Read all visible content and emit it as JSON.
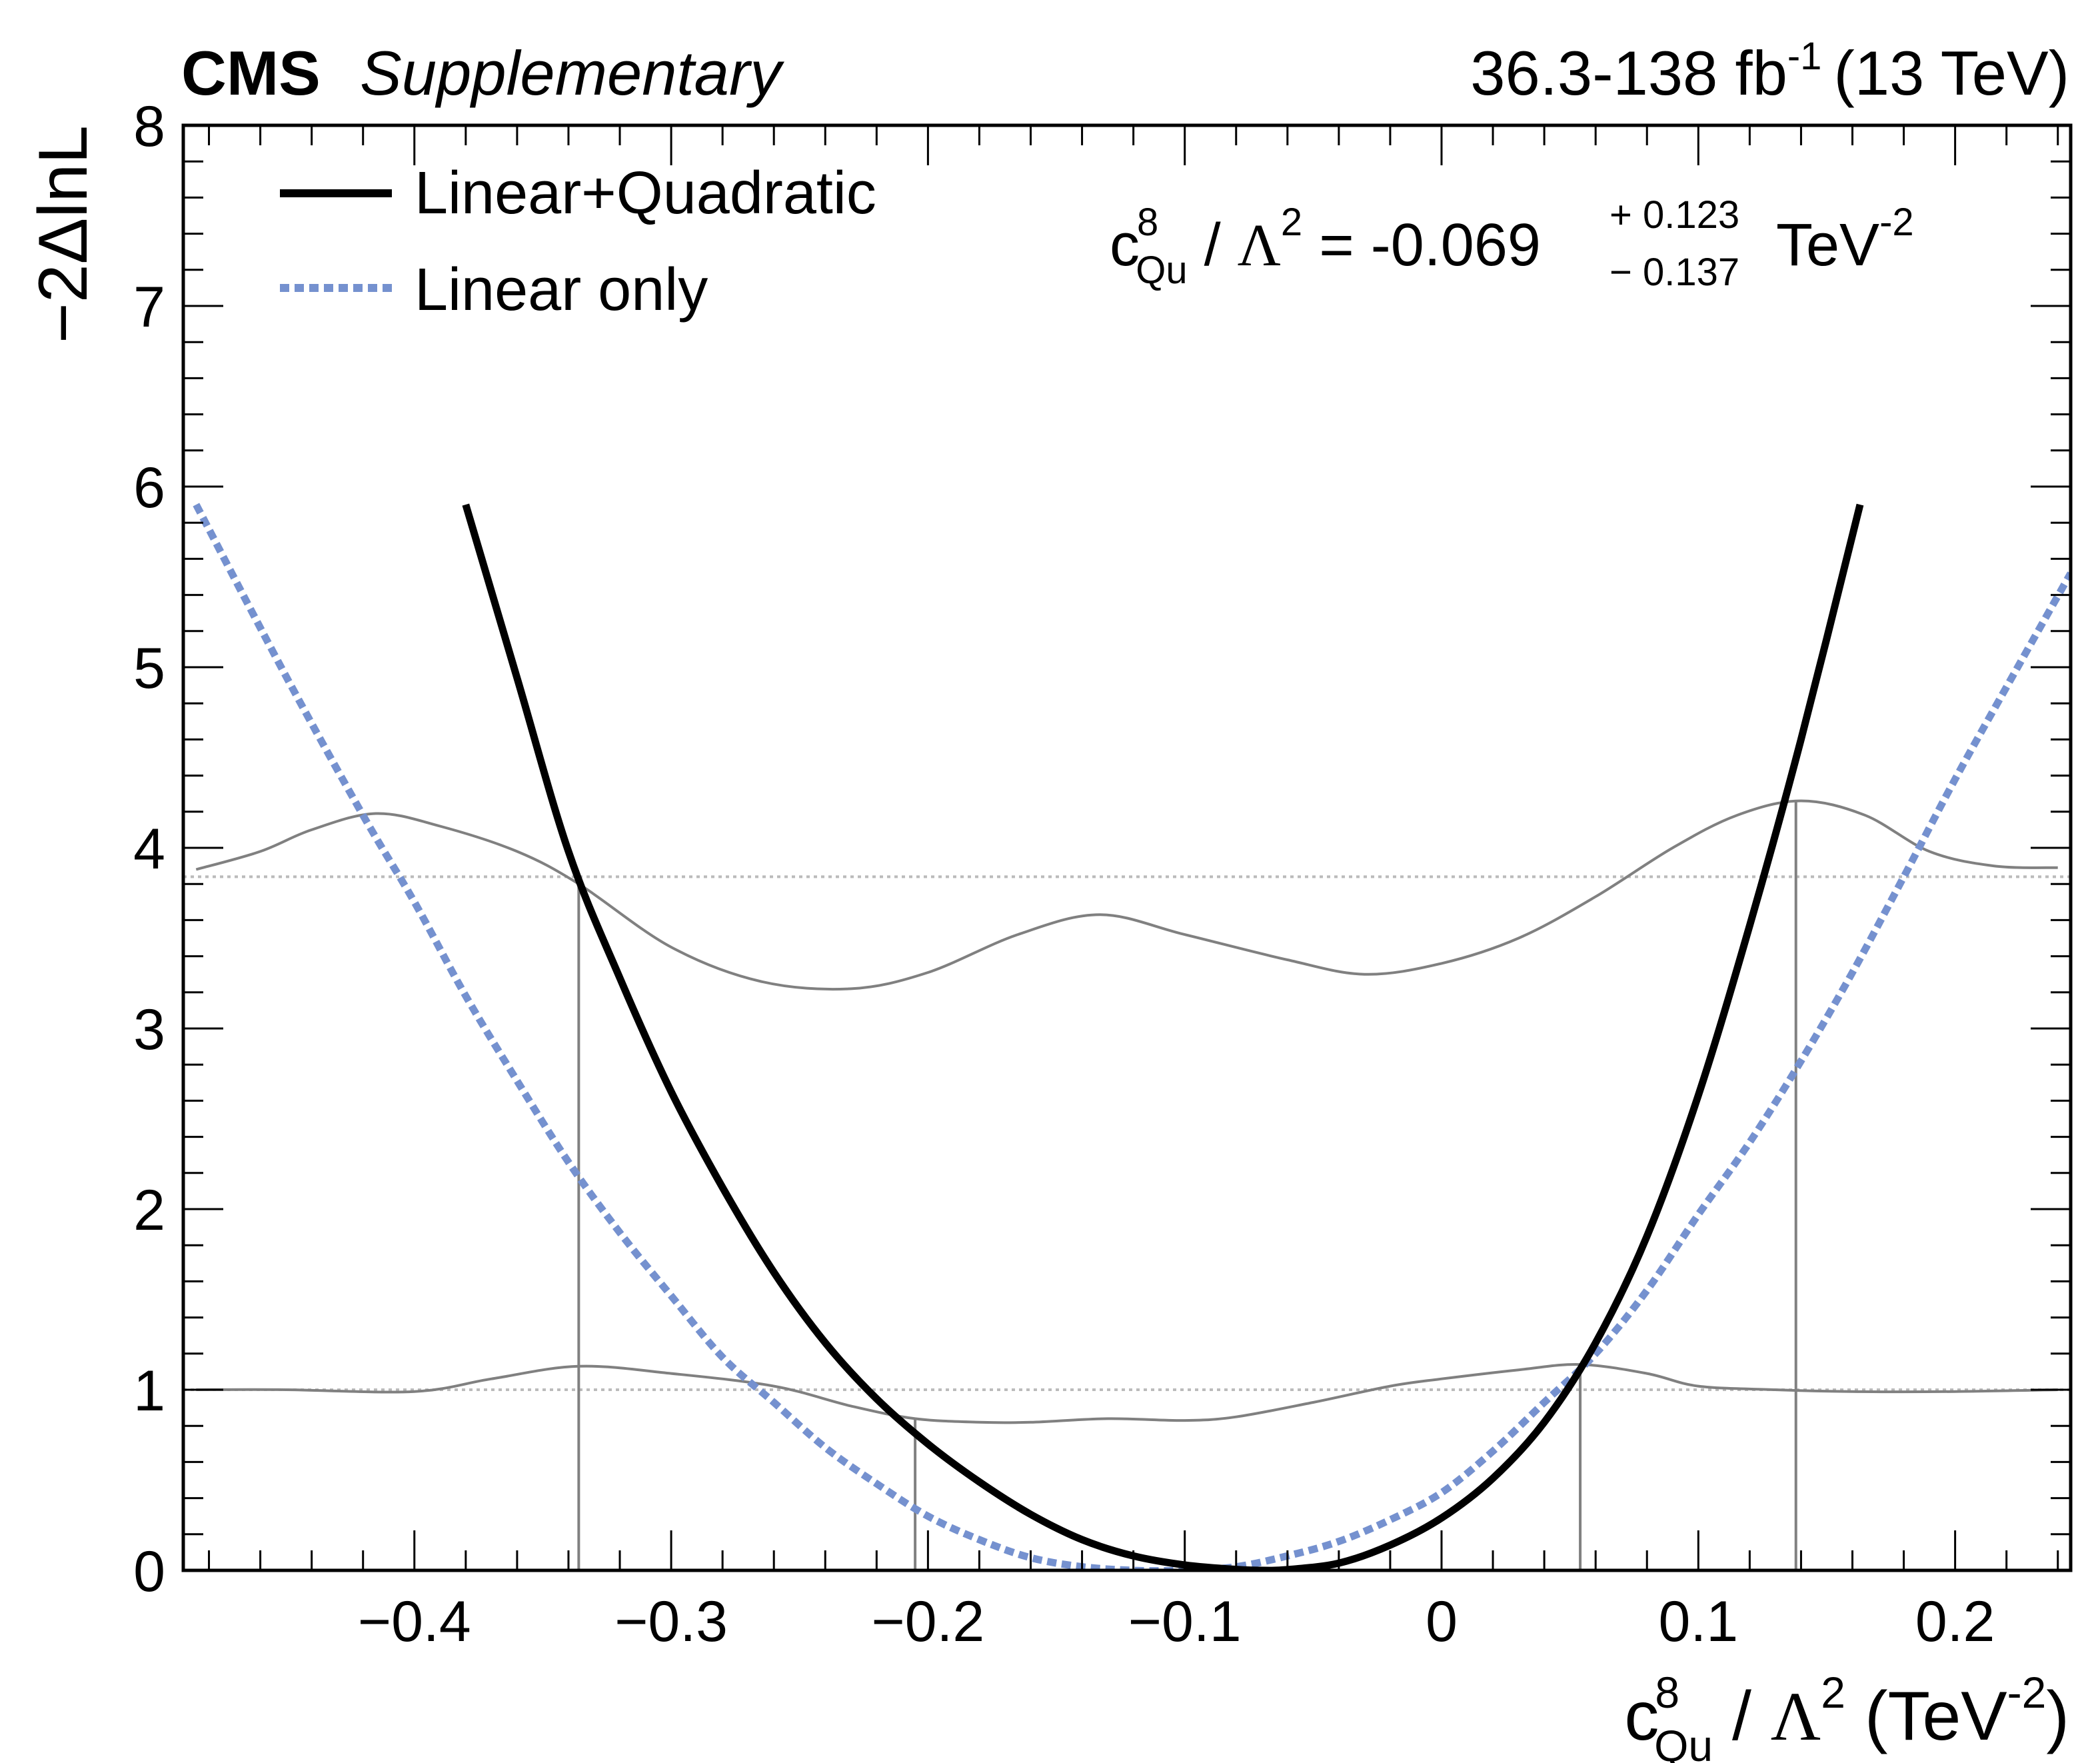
{
  "header": {
    "experiment": "CMS",
    "status": "Supplementary",
    "lumi_text": "36.3-138 fb",
    "lumi_exp": "-1",
    "energy": "(13 TeV)"
  },
  "result": {
    "coef": "c",
    "coef_sup": "8",
    "coef_sub": "Qu",
    "slash": " / ",
    "lambda": "Λ",
    "lambda_sup": "2",
    "equals_value": " = -0.069",
    "err_up": "+ 0.123",
    "err_down": "− 0.137",
    "unit": "TeV",
    "unit_sup": "-2"
  },
  "xaxis": {
    "coef": "c",
    "coef_sup": "8",
    "coef_sub": "Qu",
    "slash": " / ",
    "lambda": "Λ",
    "lambda_sup": "2",
    "unit_open": " (TeV",
    "unit_sup": "-2",
    "unit_close": ")"
  },
  "yaxis": {
    "label": "−2ΔlnL"
  },
  "legend": [
    {
      "label": "Linear+Quadratic",
      "color": "#000000",
      "style": "solid"
    },
    {
      "label": "Linear only",
      "color": "#7591cf",
      "style": "dotted"
    }
  ],
  "colors": {
    "linquad": "#000000",
    "linear": "#7591cf",
    "band": "#808080",
    "threshold": "#bbbbbb"
  },
  "chart_data": {
    "type": "line",
    "xlim": [
      -0.49,
      0.245
    ],
    "ylim": [
      0,
      8
    ],
    "x_ticks": [
      -0.4,
      -0.3,
      -0.2,
      -0.1,
      0,
      0.1,
      0.2
    ],
    "x_tick_labels": [
      "−0.4",
      "−0.3",
      "−0.2",
      "−0.1",
      "0",
      "0.1",
      "0.2"
    ],
    "y_ticks": [
      0,
      1,
      2,
      3,
      4,
      5,
      6,
      7,
      8
    ],
    "y_tick_labels": [
      "0",
      "1",
      "2",
      "3",
      "4",
      "5",
      "6",
      "7",
      "8"
    ],
    "series": [
      {
        "name": "Linear+Quadratic",
        "x": [
          -0.38,
          -0.36,
          -0.34,
          -0.32,
          -0.3,
          -0.28,
          -0.26,
          -0.24,
          -0.22,
          -0.2,
          -0.18,
          -0.16,
          -0.14,
          -0.12,
          -0.1,
          -0.08,
          -0.069,
          -0.06,
          -0.04,
          -0.02,
          0.0,
          0.02,
          0.04,
          0.06,
          0.08,
          0.1,
          0.12,
          0.14,
          0.163
        ],
        "y": [
          5.9,
          4.94,
          3.98,
          3.28,
          2.65,
          2.12,
          1.65,
          1.26,
          0.95,
          0.7,
          0.49,
          0.31,
          0.17,
          0.08,
          0.03,
          0.005,
          0.0,
          0.004,
          0.04,
          0.14,
          0.29,
          0.51,
          0.82,
          1.26,
          1.85,
          2.63,
          3.57,
          4.6,
          5.9
        ]
      },
      {
        "name": "Linear only",
        "x": [
          -0.485,
          -0.45,
          -0.42,
          -0.4,
          -0.38,
          -0.36,
          -0.34,
          -0.32,
          -0.3,
          -0.28,
          -0.26,
          -0.24,
          -0.22,
          -0.2,
          -0.18,
          -0.16,
          -0.14,
          -0.12,
          -0.1,
          -0.08,
          -0.06,
          -0.04,
          -0.02,
          0.0,
          0.02,
          0.04,
          0.06,
          0.08,
          0.1,
          0.12,
          0.14,
          0.16,
          0.18,
          0.2,
          0.22,
          0.245
        ],
        "y": [
          5.9,
          4.95,
          4.18,
          3.7,
          3.18,
          2.71,
          2.26,
          1.87,
          1.52,
          1.18,
          0.93,
          0.68,
          0.48,
          0.3,
          0.17,
          0.07,
          0.02,
          0.0,
          0.0,
          0.02,
          0.08,
          0.16,
          0.28,
          0.43,
          0.66,
          0.93,
          1.2,
          1.55,
          1.97,
          2.37,
          2.82,
          3.31,
          3.84,
          4.38,
          4.89,
          5.52
        ]
      },
      {
        "name": "",
        "x": [
          -0.485,
          -0.46,
          -0.44,
          -0.415,
          -0.39,
          -0.36,
          -0.336,
          -0.3,
          -0.265,
          -0.23,
          -0.2,
          -0.165,
          -0.133,
          -0.1,
          -0.06,
          -0.03,
          0.0,
          0.03,
          0.06,
          0.09,
          0.115,
          0.14,
          0.165,
          0.19,
          0.215,
          0.24
        ],
        "y": [
          3.88,
          3.98,
          4.1,
          4.19,
          4.12,
          3.98,
          3.8,
          3.45,
          3.26,
          3.22,
          3.31,
          3.52,
          3.63,
          3.52,
          3.38,
          3.3,
          3.36,
          3.5,
          3.73,
          4.0,
          4.18,
          4.26,
          4.18,
          3.98,
          3.9,
          3.89
        ]
      },
      {
        "name": "",
        "x": [
          -0.485,
          -0.45,
          -0.4,
          -0.37,
          -0.336,
          -0.3,
          -0.26,
          -0.23,
          -0.205,
          -0.18,
          -0.16,
          -0.13,
          -0.1,
          -0.08,
          -0.05,
          -0.02,
          0.0,
          0.03,
          0.054,
          0.08,
          0.1,
          0.13,
          0.16,
          0.2,
          0.24
        ],
        "y": [
          1.0,
          1.0,
          0.99,
          1.06,
          1.13,
          1.09,
          1.02,
          0.91,
          0.84,
          0.82,
          0.82,
          0.84,
          0.83,
          0.85,
          0.93,
          1.02,
          1.06,
          1.11,
          1.14,
          1.09,
          1.02,
          1.0,
          0.99,
          0.99,
          1.0
        ]
      }
    ],
    "reference_lines_y": [
      3.84,
      1.0
    ],
    "interval_markers_x": [
      -0.336,
      -0.205,
      0.054,
      0.138
    ]
  }
}
